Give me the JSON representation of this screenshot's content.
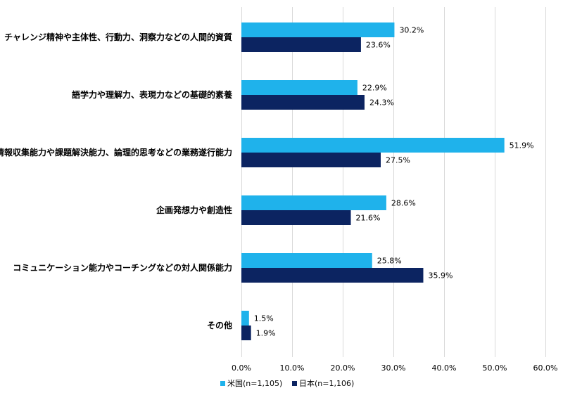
{
  "chart_data": {
    "type": "bar",
    "orientation": "horizontal",
    "categories": [
      "チャレンジ精神や主体性、行動力、洞察力などの人間的資質",
      "語学力や理解力、表現力などの基礎的素養",
      "情報収集能力や課題解決能力、論理的思考などの業務遂行能力",
      "企画発想力や創造性",
      "コミュニケーション能力やコーチングなどの対人関係能力",
      "その他"
    ],
    "series": [
      {
        "name": "米国(n=1,105)",
        "color": "#1fb2eb",
        "values": [
          30.2,
          22.9,
          51.9,
          28.6,
          25.8,
          1.5
        ]
      },
      {
        "name": "日本(n=1,106)",
        "color": "#0c2461",
        "values": [
          23.6,
          24.3,
          27.5,
          21.6,
          35.9,
          1.9
        ]
      }
    ],
    "xlim": [
      0,
      60
    ],
    "xticks": [
      0,
      10,
      20,
      30,
      40,
      50,
      60
    ],
    "tick_format": "{v}.0%",
    "data_label_suffix": "%",
    "grid": "vertical",
    "legend": "bottom"
  }
}
